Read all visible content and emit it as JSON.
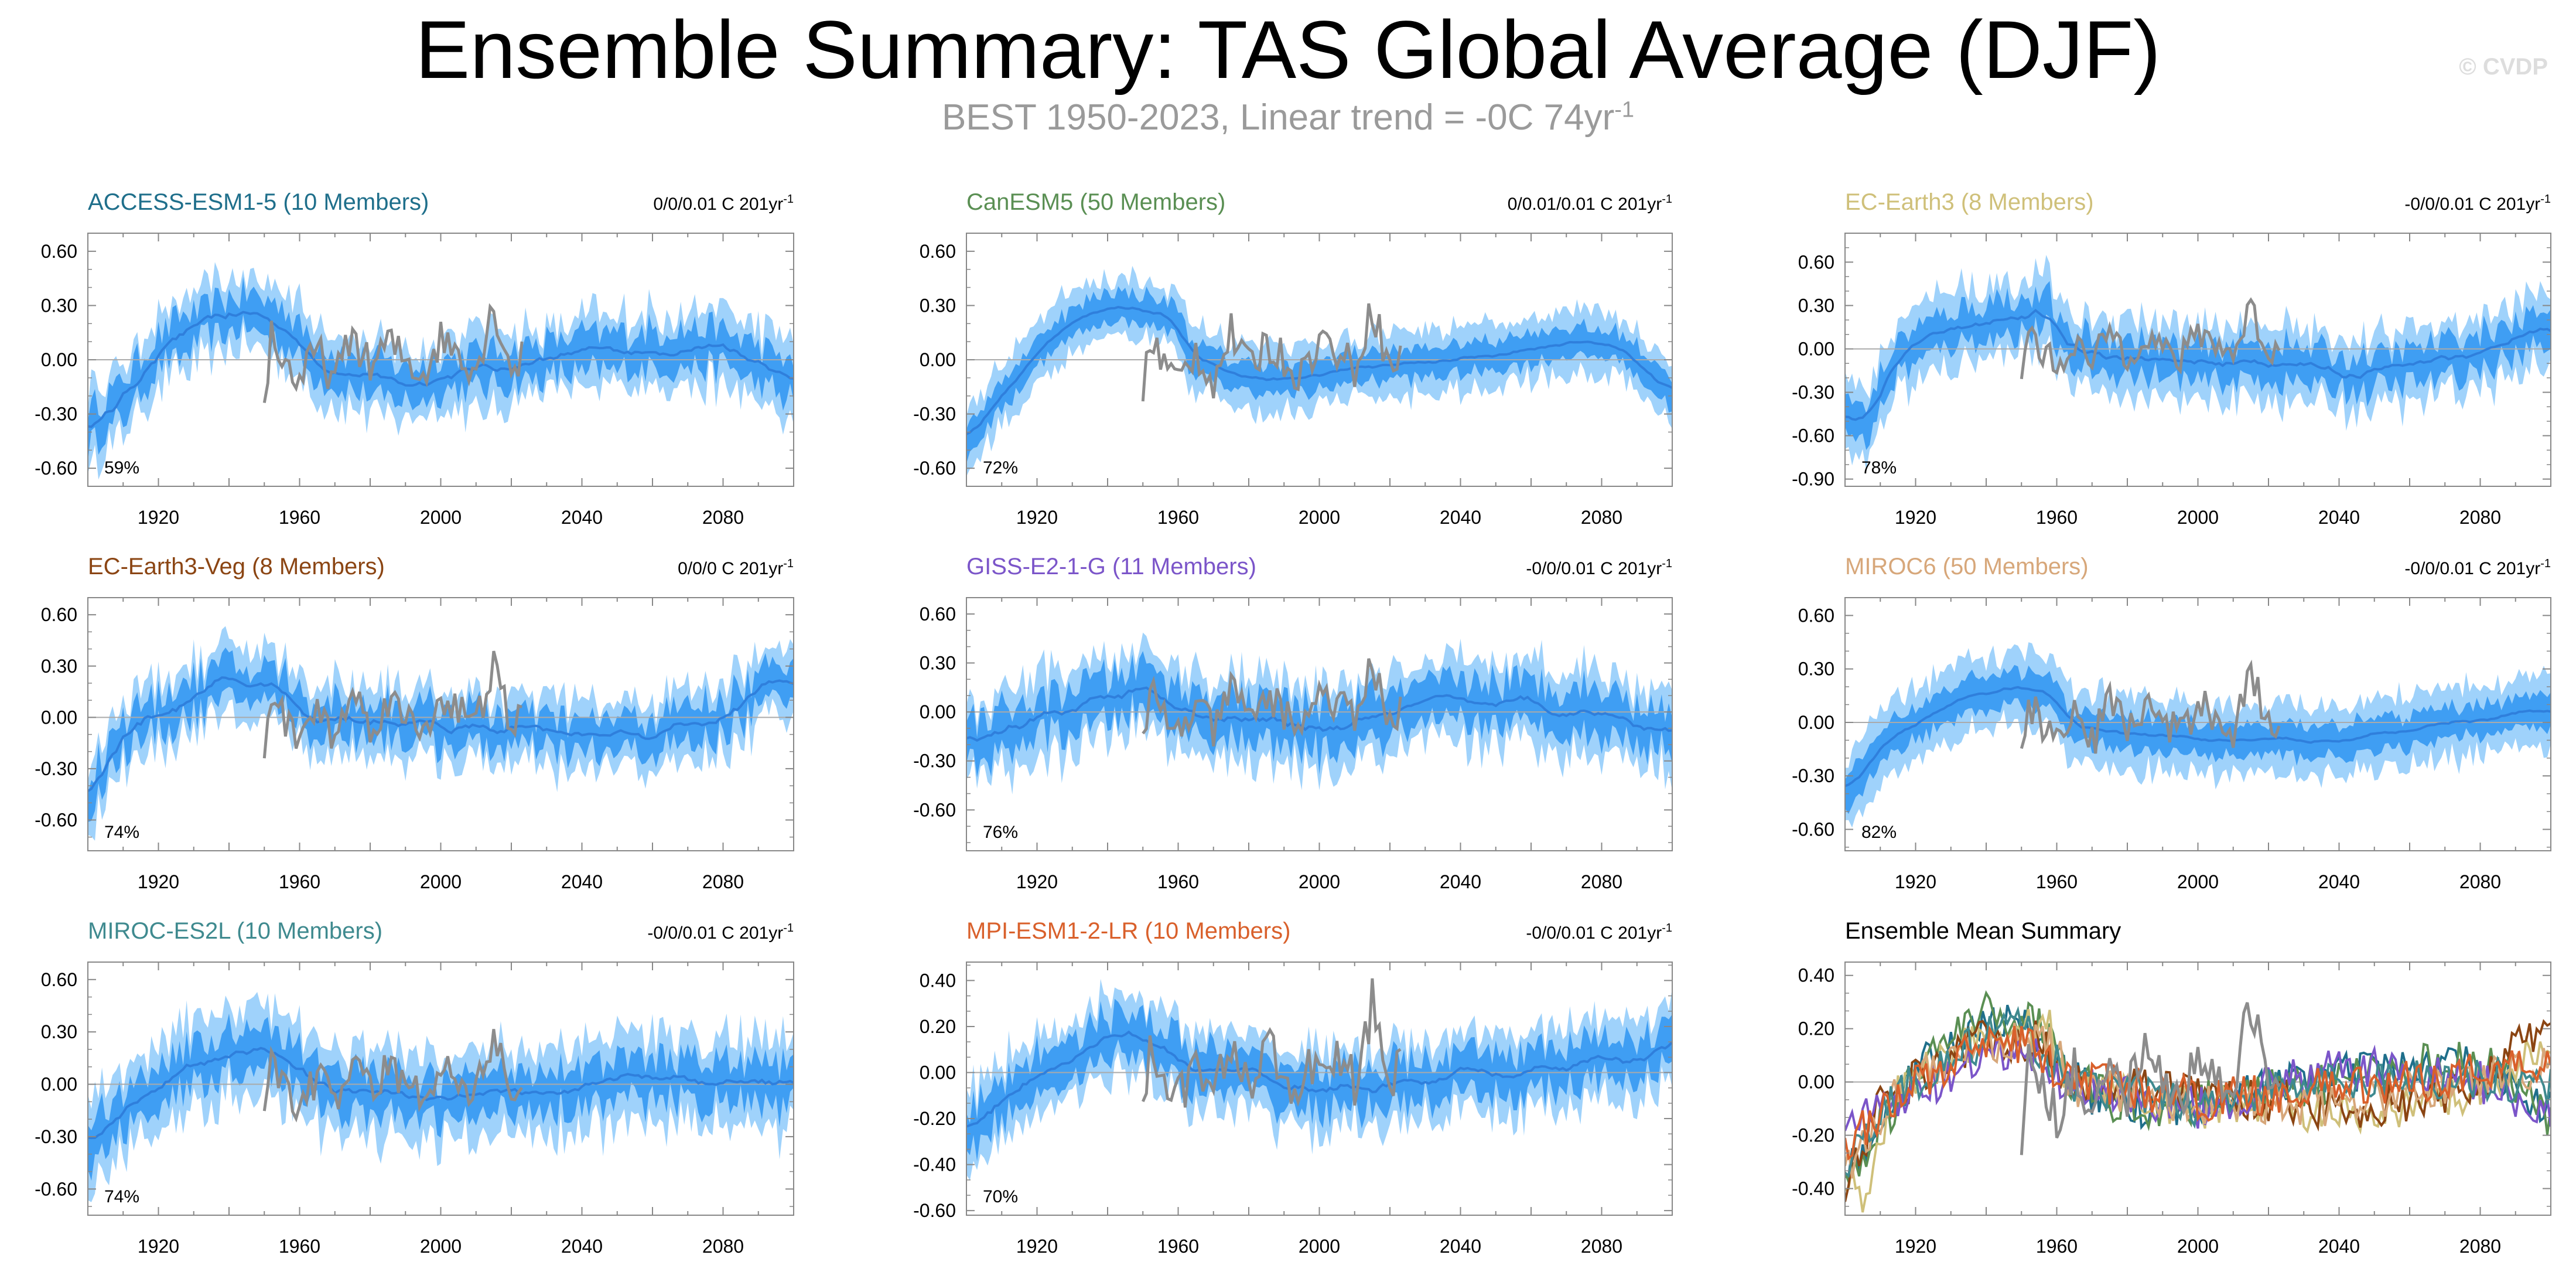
{
  "title": "Ensemble Summary: TAS Global Average (DJF)",
  "subtitle": {
    "text": "BEST 1950-2023, Linear trend = -0C 74yr",
    "sup": "-1"
  },
  "watermark": "© CVDP",
  "colors": {
    "spread_outer": "#9fd2fb",
    "spread_inner": "#3f9ef3",
    "mean": "#2f7fdc",
    "obs": "#8c8c8c",
    "zero_line": "#aaaaaa"
  },
  "chart_data": [
    {
      "type": "line",
      "title": "ACCESS-ESM1-5 (10 Members)",
      "title_color": "#1f6f8b",
      "trend_label": "0/0/0.01 C 201yr",
      "trend_sup": "-1",
      "pct": "59%",
      "x_range": [
        1900,
        2100
      ],
      "ylim": [
        -0.7,
        0.7
      ],
      "yticks": [
        -0.6,
        -0.3,
        0.0,
        0.3,
        0.6
      ],
      "ytick_labels": [
        "-0.60",
        "-0.30",
        "0.00",
        "0.30",
        "0.60"
      ],
      "xticks": [
        1920,
        1960,
        2000,
        2040,
        2080
      ],
      "grid": false,
      "knots": [
        [
          1900,
          -0.38
        ],
        [
          1910,
          -0.22
        ],
        [
          1920,
          0.05
        ],
        [
          1935,
          0.22
        ],
        [
          1945,
          0.27
        ],
        [
          1955,
          0.2
        ],
        [
          1963,
          0.03
        ],
        [
          1970,
          -0.05
        ],
        [
          1980,
          -0.1
        ],
        [
          1992,
          -0.14
        ],
        [
          2000,
          -0.08
        ],
        [
          2020,
          -0.03
        ],
        [
          2040,
          0.03
        ],
        [
          2060,
          0.06
        ],
        [
          2080,
          0.07
        ],
        [
          2100,
          -0.13
        ]
      ],
      "noise": 0.09,
      "band": [
        0.1,
        0.2
      ]
    },
    {
      "type": "line",
      "title": "CanESM5 (50 Members)",
      "title_color": "#5a8f53",
      "trend_label": "0/0.01/0.01 C 201yr",
      "trend_sup": "-1",
      "pct": "72%",
      "x_range": [
        1900,
        2100
      ],
      "ylim": [
        -0.7,
        0.7
      ],
      "yticks": [
        -0.6,
        -0.3,
        0.0,
        0.3,
        0.6
      ],
      "ytick_labels": [
        "-0.60",
        "-0.30",
        "0.00",
        "0.30",
        "0.60"
      ],
      "xticks": [
        1920,
        1960,
        2000,
        2040,
        2080
      ],
      "grid": false,
      "knots": [
        [
          1900,
          -0.45
        ],
        [
          1910,
          -0.2
        ],
        [
          1925,
          0.15
        ],
        [
          1940,
          0.3
        ],
        [
          1950,
          0.28
        ],
        [
          1960,
          0.22
        ],
        [
          1963,
          0.03
        ],
        [
          1975,
          -0.08
        ],
        [
          1992,
          -0.12
        ],
        [
          2010,
          -0.04
        ],
        [
          2030,
          -0.02
        ],
        [
          2050,
          0.03
        ],
        [
          2070,
          0.1
        ],
        [
          2085,
          0.08
        ],
        [
          2100,
          -0.18
        ]
      ],
      "noise": 0.04,
      "band": [
        0.08,
        0.17
      ]
    },
    {
      "type": "line",
      "title": "EC-Earth3 (8 Members)",
      "title_color": "#cfc07a",
      "trend_label": "-0/0/0.01 C 201yr",
      "trend_sup": "-1",
      "pct": "78%",
      "x_range": [
        1900,
        2100
      ],
      "ylim": [
        -0.95,
        0.8
      ],
      "yticks": [
        -0.9,
        -0.6,
        -0.3,
        0.0,
        0.3,
        0.6
      ],
      "ytick_labels": [
        "-0.90",
        "-0.60",
        "-0.30",
        "0.00",
        "0.30",
        "0.60"
      ],
      "xticks": [
        1920,
        1960,
        2000,
        2040,
        2080
      ],
      "grid": false,
      "knots": [
        [
          1900,
          -0.4
        ],
        [
          1905,
          -0.55
        ],
        [
          1915,
          -0.05
        ],
        [
          1930,
          0.15
        ],
        [
          1945,
          0.22
        ],
        [
          1958,
          0.25
        ],
        [
          1962,
          0.0
        ],
        [
          1980,
          -0.05
        ],
        [
          2000,
          -0.12
        ],
        [
          2020,
          -0.08
        ],
        [
          2045,
          -0.18
        ],
        [
          2070,
          -0.08
        ],
        [
          2090,
          0.05
        ],
        [
          2100,
          0.2
        ]
      ],
      "noise": 0.1,
      "band": [
        0.12,
        0.25
      ]
    },
    {
      "type": "line",
      "title": "EC-Earth3-Veg (8 Members)",
      "title_color": "#8b4513",
      "trend_label": "0/0/0 C 201yr",
      "trend_sup": "-1",
      "pct": "74%",
      "x_range": [
        1900,
        2100
      ],
      "ylim": [
        -0.78,
        0.7
      ],
      "yticks": [
        -0.6,
        -0.3,
        0.0,
        0.3,
        0.6
      ],
      "ytick_labels": [
        "-0.60",
        "-0.30",
        "0.00",
        "0.30",
        "0.60"
      ],
      "xticks": [
        1920,
        1960,
        2000,
        2040,
        2080
      ],
      "grid": false,
      "knots": [
        [
          1900,
          -0.45
        ],
        [
          1910,
          -0.1
        ],
        [
          1925,
          0.08
        ],
        [
          1940,
          0.2
        ],
        [
          1955,
          0.18
        ],
        [
          1962,
          0.0
        ],
        [
          1980,
          0.0
        ],
        [
          2000,
          -0.05
        ],
        [
          2020,
          -0.08
        ],
        [
          2040,
          -0.12
        ],
        [
          2060,
          -0.1
        ],
        [
          2080,
          0.0
        ],
        [
          2100,
          0.28
        ]
      ],
      "noise": 0.11,
      "band": [
        0.1,
        0.2
      ]
    },
    {
      "type": "line",
      "title": "GISS-E2-1-G (11 Members)",
      "title_color": "#7b55c9",
      "trend_label": "-0/0/0.01 C 201yr",
      "trend_sup": "-1",
      "pct": "76%",
      "x_range": [
        1900,
        2100
      ],
      "ylim": [
        -0.85,
        0.7
      ],
      "yticks": [
        -0.6,
        -0.3,
        0.0,
        0.3,
        0.6
      ],
      "ytick_labels": [
        "-0.60",
        "-0.30",
        "0.00",
        "0.30",
        "0.60"
      ],
      "xticks": [
        1920,
        1960,
        2000,
        2040,
        2080
      ],
      "grid": false,
      "knots": [
        [
          1900,
          -0.2
        ],
        [
          1920,
          -0.05
        ],
        [
          1940,
          0.08
        ],
        [
          1950,
          0.15
        ],
        [
          1962,
          0.0
        ],
        [
          1980,
          -0.05
        ],
        [
          2000,
          -0.12
        ],
        [
          2020,
          -0.02
        ],
        [
          2040,
          0.06
        ],
        [
          2060,
          0.05
        ],
        [
          2080,
          0.0
        ],
        [
          2100,
          -0.12
        ]
      ],
      "noise": 0.11,
      "band": [
        0.13,
        0.25
      ]
    },
    {
      "type": "line",
      "title": "MIROC6 (50 Members)",
      "title_color": "#d7a77a",
      "trend_label": "-0/0/0.01 C 201yr",
      "trend_sup": "-1",
      "pct": "82%",
      "x_range": [
        1900,
        2100
      ],
      "ylim": [
        -0.72,
        0.7
      ],
      "yticks": [
        -0.6,
        -0.3,
        0.0,
        0.3,
        0.6
      ],
      "ytick_labels": [
        "-0.60",
        "-0.30",
        "0.00",
        "0.30",
        "0.60"
      ],
      "xticks": [
        1920,
        1960,
        2000,
        2040,
        2080
      ],
      "grid": false,
      "knots": [
        [
          1900,
          -0.4
        ],
        [
          1915,
          -0.05
        ],
        [
          1935,
          0.15
        ],
        [
          1950,
          0.2
        ],
        [
          1960,
          0.15
        ],
        [
          1963,
          -0.02
        ],
        [
          1980,
          -0.05
        ],
        [
          2000,
          -0.1
        ],
        [
          2020,
          -0.1
        ],
        [
          2040,
          -0.1
        ],
        [
          2060,
          -0.05
        ],
        [
          2080,
          0.02
        ],
        [
          2100,
          0.08
        ]
      ],
      "noise": 0.04,
      "band": [
        0.09,
        0.2
      ]
    },
    {
      "type": "line",
      "title": "MIROC-ES2L (10 Members)",
      "title_color": "#3f8a8f",
      "trend_label": "-0/0/0.01 C 201yr",
      "trend_sup": "-1",
      "pct": "74%",
      "x_range": [
        1900,
        2100
      ],
      "ylim": [
        -0.75,
        0.7
      ],
      "yticks": [
        -0.6,
        -0.3,
        0.0,
        0.3,
        0.6
      ],
      "ytick_labels": [
        "-0.60",
        "-0.30",
        "0.00",
        "0.30",
        "0.60"
      ],
      "xticks": [
        1920,
        1960,
        2000,
        2040,
        2080
      ],
      "grid": false,
      "knots": [
        [
          1900,
          -0.35
        ],
        [
          1915,
          -0.05
        ],
        [
          1935,
          0.15
        ],
        [
          1948,
          0.25
        ],
        [
          1958,
          0.12
        ],
        [
          1963,
          0.0
        ],
        [
          1980,
          -0.05
        ],
        [
          2000,
          -0.1
        ],
        [
          2020,
          -0.03
        ],
        [
          2040,
          0.0
        ],
        [
          2060,
          0.02
        ],
        [
          2080,
          0.02
        ],
        [
          2100,
          -0.02
        ]
      ],
      "noise": 0.1,
      "band": [
        0.12,
        0.25
      ]
    },
    {
      "type": "line",
      "title": "MPI-ESM1-2-LR (10 Members)",
      "title_color": "#d9602b",
      "trend_label": "-0/0/0.01 C 201yr",
      "trend_sup": "-1",
      "pct": "70%",
      "x_range": [
        1900,
        2100
      ],
      "ylim": [
        -0.62,
        0.48
      ],
      "yticks": [
        -0.6,
        -0.4,
        -0.2,
        0.0,
        0.2,
        0.4
      ],
      "ytick_labels": [
        "-0.60",
        "-0.40",
        "-0.20",
        "0.00",
        "0.20",
        "0.40"
      ],
      "xticks": [
        1920,
        1960,
        2000,
        2040,
        2080
      ],
      "grid": false,
      "knots": [
        [
          1900,
          -0.28
        ],
        [
          1915,
          -0.05
        ],
        [
          1935,
          0.12
        ],
        [
          1950,
          0.18
        ],
        [
          1962,
          0.02
        ],
        [
          1980,
          -0.02
        ],
        [
          2000,
          -0.08
        ],
        [
          2020,
          -0.05
        ],
        [
          2040,
          -0.02
        ],
        [
          2060,
          0.0
        ],
        [
          2080,
          0.05
        ],
        [
          2100,
          0.1
        ]
      ],
      "noise": 0.08,
      "band": [
        0.09,
        0.17
      ]
    },
    {
      "type": "line",
      "title": "Ensemble Mean Summary",
      "title_color": "#000000",
      "summary": true,
      "x_range": [
        1900,
        2100
      ],
      "ylim": [
        -0.5,
        0.45
      ],
      "yticks": [
        -0.4,
        -0.2,
        0.0,
        0.2,
        0.4
      ],
      "ytick_labels": [
        "-0.40",
        "-0.20",
        "0.00",
        "0.20",
        "0.40"
      ],
      "xticks": [
        1920,
        1960,
        2000,
        2040,
        2080
      ],
      "grid": false
    }
  ]
}
